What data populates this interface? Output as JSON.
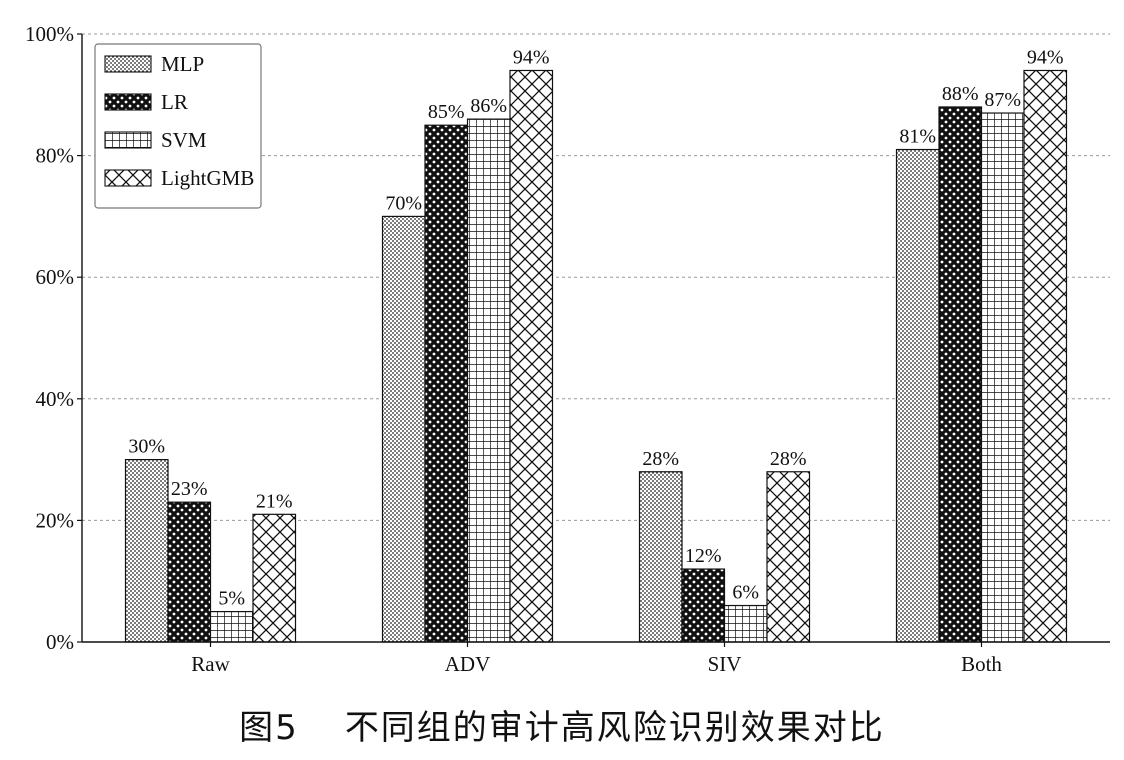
{
  "chart_data": {
    "type": "bar",
    "categories": [
      "Raw",
      "ADV",
      "SIV",
      "Both"
    ],
    "series": [
      {
        "name": "MLP",
        "values": [
          30,
          70,
          28,
          81
        ],
        "pattern": "dots"
      },
      {
        "name": "LR",
        "values": [
          23,
          85,
          12,
          88
        ],
        "pattern": "stars"
      },
      {
        "name": "SVM",
        "values": [
          5,
          86,
          6,
          87
        ],
        "pattern": "grid"
      },
      {
        "name": "LightGMB",
        "values": [
          21,
          94,
          28,
          94
        ],
        "pattern": "crosshatch"
      }
    ],
    "value_format": "{v}%",
    "yticks": [
      "0%",
      "20%",
      "40%",
      "60%",
      "80%",
      "100%"
    ],
    "ylim": [
      0,
      100
    ],
    "grid": "horizontal-dashed",
    "legend": "top-left",
    "title": "",
    "xlabel": "",
    "ylabel": ""
  },
  "caption": {
    "number": "图5",
    "text": "不同组的审计高风险识别效果对比"
  }
}
